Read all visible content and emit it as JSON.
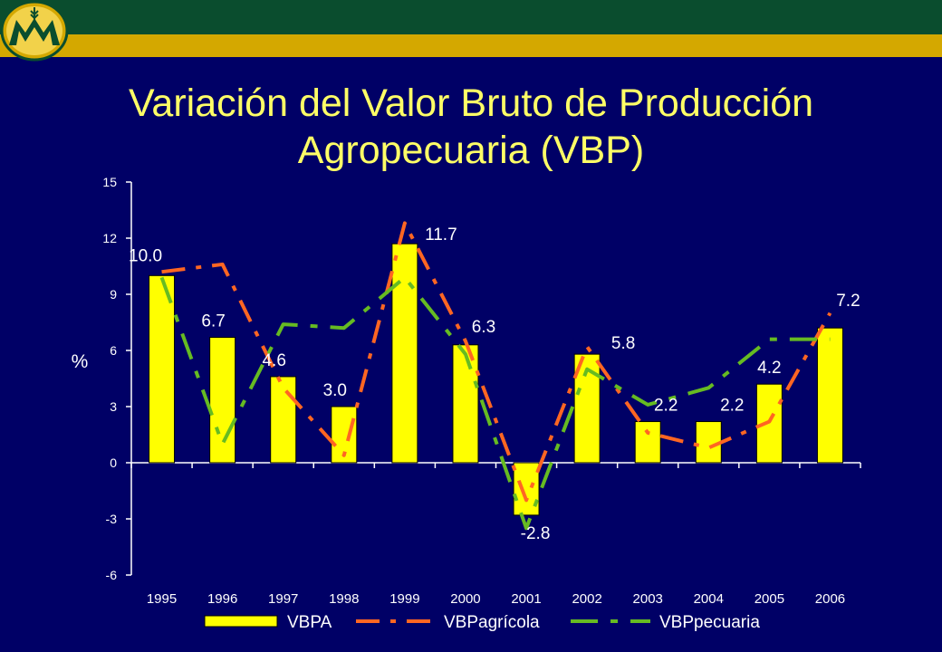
{
  "colors": {
    "background": "#000066",
    "header_green": "#0a4d2e",
    "header_gold": "#d4a800",
    "title": "#ffff66",
    "bar_fill": "#ffff00",
    "bar_stroke": "#000000",
    "agricola_line": "#ff6622",
    "pecuaria_line": "#66bb22",
    "text": "#ffffff"
  },
  "logo": {
    "icon": "wheat-emblem-logo"
  },
  "title_lines": [
    "Variación del Valor Bruto de Producción",
    "Agropecuaria (VBP)"
  ],
  "chart_data": {
    "type": "bar",
    "title": "Variación del Valor Bruto de Producción Agropecuaria (VBP)",
    "categories": [
      "1995",
      "1996",
      "1997",
      "1998",
      "1999",
      "2000",
      "2001",
      "2002",
      "2003",
      "2004",
      "2005",
      "2006"
    ],
    "ylabel": "%",
    "xlabel": "",
    "ylim": [
      -6,
      15
    ],
    "yticks": [
      -6,
      -3,
      0,
      3,
      6,
      9,
      12,
      15
    ],
    "legend_position": "bottom",
    "series": [
      {
        "name": "VBPA",
        "kind": "bar",
        "values": [
          10.0,
          6.7,
          4.6,
          3.0,
          11.7,
          6.3,
          -2.8,
          5.8,
          2.2,
          2.2,
          4.2,
          7.2
        ],
        "labels": [
          "10.0",
          "6.7",
          "4.6",
          "3.0",
          "11.7",
          "6.3",
          "-2.8",
          "5.8",
          "2.2",
          "2.2",
          "4.2",
          "7.2"
        ]
      },
      {
        "name": "VBPagrícola",
        "kind": "line",
        "dash": "dash",
        "values": [
          10.2,
          10.6,
          4.0,
          0.4,
          12.8,
          6.5,
          -2.0,
          6.2,
          1.6,
          0.8,
          2.2,
          8.0
        ]
      },
      {
        "name": "VBPpecuaria",
        "kind": "line",
        "dash": "dash",
        "values": [
          9.9,
          1.0,
          7.4,
          7.2,
          9.9,
          5.8,
          -3.5,
          5.0,
          3.1,
          4.0,
          6.6,
          6.6
        ]
      }
    ]
  }
}
